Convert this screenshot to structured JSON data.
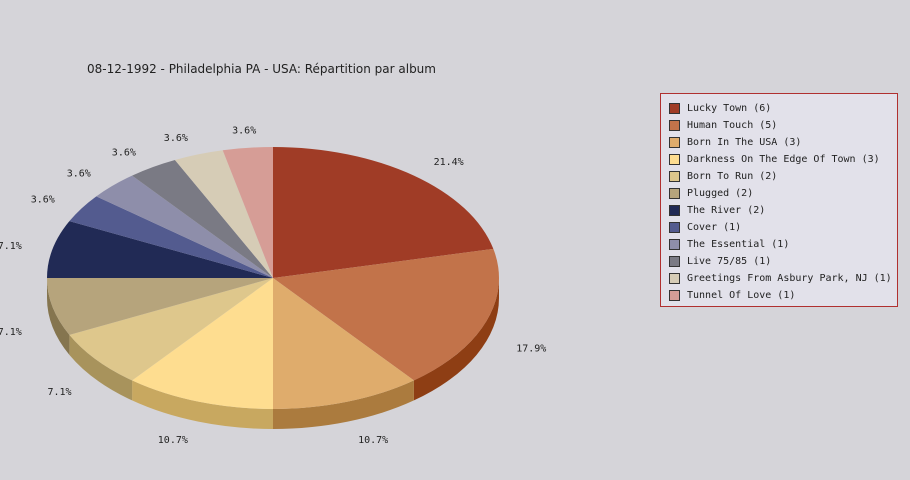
{
  "chart_data": {
    "type": "pie",
    "title": "08-12-1992 - Philadelphia PA - USA:  Répartition par album",
    "legend_position": "right",
    "slices": [
      {
        "label": "Lucky Town (6)",
        "value": 6,
        "percent_label": "21.4%",
        "color": "#a03c26",
        "side_color": "#7a0c00"
      },
      {
        "label": "Human Touch (5)",
        "value": 5,
        "percent_label": "17.9%",
        "color": "#c2734a",
        "side_color": "#8e3e14"
      },
      {
        "label": "Born In The USA (3)",
        "value": 3,
        "percent_label": "10.7%",
        "color": "#dfac6c",
        "side_color": "#ab7b3e"
      },
      {
        "label": "Darkness On The Edge Of Town (3)",
        "value": 3,
        "percent_label": "10.7%",
        "color": "#fedd90",
        "side_color": "#c8a860"
      },
      {
        "label": "Born To Run (2)",
        "value": 2,
        "percent_label": "7.1%",
        "color": "#dec78c",
        "side_color": "#a8935c"
      },
      {
        "label": "Plugged (2)",
        "value": 2,
        "percent_label": "7.1%",
        "color": "#b6a47c",
        "side_color": "#85754f"
      },
      {
        "label": "The River (2)",
        "value": 2,
        "percent_label": "7.1%",
        "color": "#212a55",
        "side_color": "#10173a"
      },
      {
        "label": "Cover (1)",
        "value": 1,
        "percent_label": "3.6%",
        "color": "#535b8f",
        "side_color": "#333a66"
      },
      {
        "label": "The Essential (1)",
        "value": 1,
        "percent_label": "3.6%",
        "color": "#8e8eaa",
        "side_color": "#646480"
      },
      {
        "label": "Live 75/85 (1)",
        "value": 1,
        "percent_label": "3.6%",
        "color": "#7a7a84",
        "side_color": "#55555e"
      },
      {
        "label": "Greetings From Asbury Park, NJ (1)",
        "value": 1,
        "percent_label": "3.6%",
        "color": "#d6ccb6",
        "side_color": "#a89e88"
      },
      {
        "label": "Tunnel Of Love (1)",
        "value": 1,
        "percent_label": "3.6%",
        "color": "#d69d96",
        "side_color": "#a8706a"
      }
    ]
  }
}
